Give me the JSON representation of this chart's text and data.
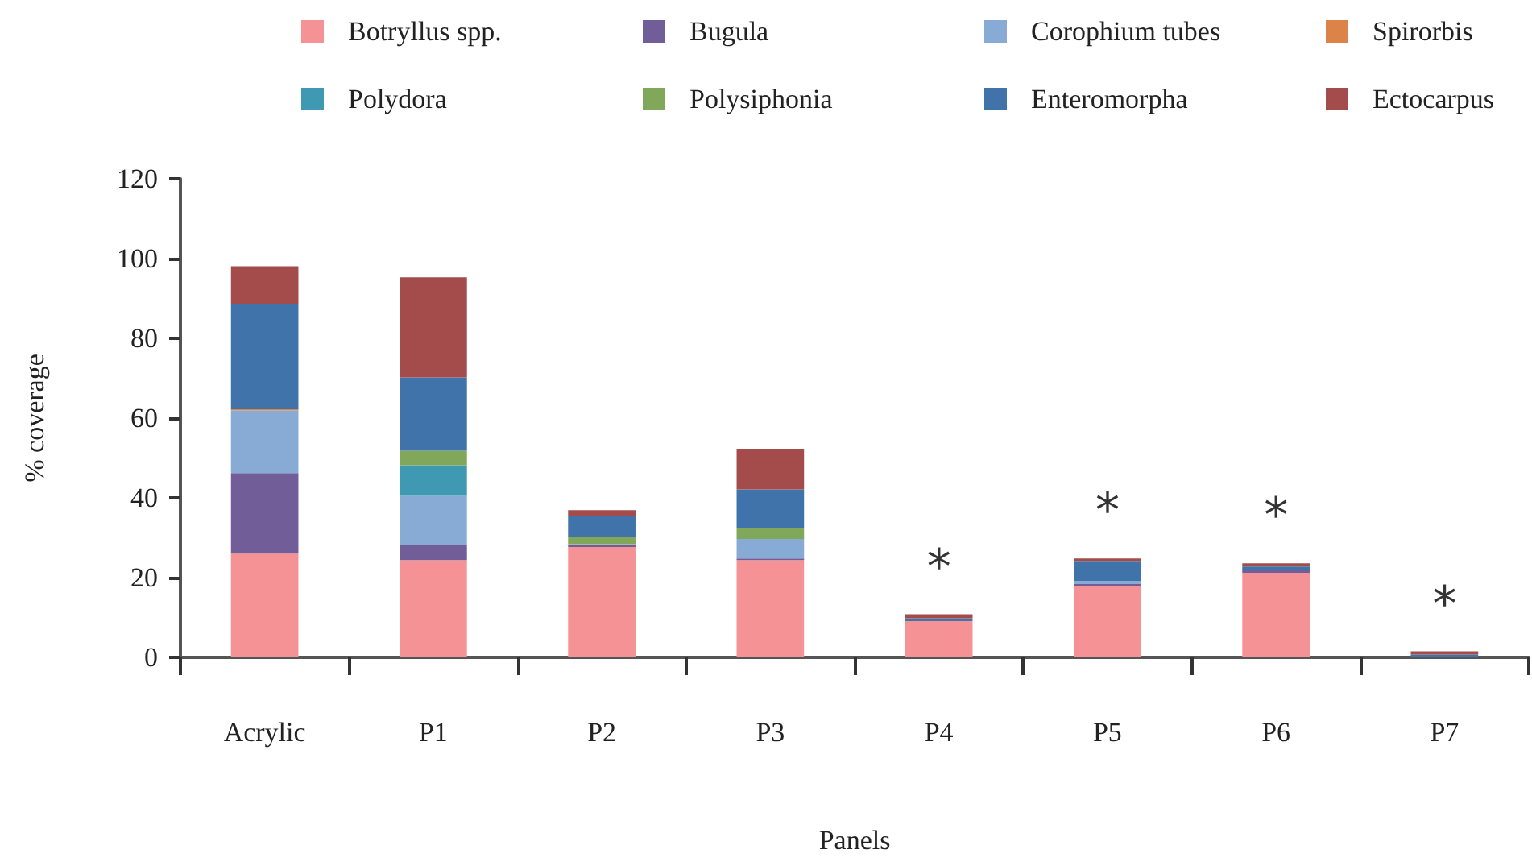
{
  "chart_data": {
    "type": "bar",
    "stacked": true,
    "xlabel": "Panels",
    "ylabel": "% coverage",
    "categories": [
      "Acrylic",
      "P1",
      "P2",
      "P3",
      "P4",
      "P5",
      "P6",
      "P7"
    ],
    "ylim": [
      0,
      120
    ],
    "yticks": [
      0,
      20,
      40,
      60,
      80,
      100,
      120
    ],
    "grid": false,
    "legend": "top",
    "series": [
      {
        "name": "Botryllus spp.",
        "color": "#f59295",
        "values": [
          26,
          24.4,
          27.7,
          24.4,
          9.1,
          18,
          21.2,
          0
        ]
      },
      {
        "name": "Bugula",
        "color": "#715d97",
        "values": [
          20.2,
          3.7,
          0.4,
          0.4,
          0,
          0.4,
          0.8,
          0
        ]
      },
      {
        "name": "Corophium tubes",
        "color": "#88abd6",
        "values": [
          15.7,
          12.4,
          0.3,
          4.9,
          0,
          0.8,
          0,
          0
        ]
      },
      {
        "name": "Spirorbis",
        "color": "#dc8448",
        "values": [
          0.3,
          0,
          0,
          0,
          0,
          0,
          0,
          0
        ]
      },
      {
        "name": "Polydora",
        "color": "#3f99b3",
        "values": [
          0,
          7.7,
          0,
          0,
          0,
          0,
          0,
          0
        ]
      },
      {
        "name": "Polysiphonia",
        "color": "#80a75a",
        "values": [
          0,
          3.6,
          1.7,
          2.8,
          0,
          0,
          0,
          0
        ]
      },
      {
        "name": "Enteromorpha",
        "color": "#3f73aa",
        "values": [
          26.5,
          18.4,
          5.3,
          9.6,
          0.7,
          5,
          0.8,
          0.7
        ]
      },
      {
        "name": "Ectocarpus",
        "color": "#a44b4b",
        "values": [
          9.4,
          25.1,
          1.5,
          10.2,
          1,
          0.6,
          0.8,
          0.8
        ]
      }
    ],
    "annotations": [
      "*",
      "*",
      "*",
      "*"
    ]
  }
}
